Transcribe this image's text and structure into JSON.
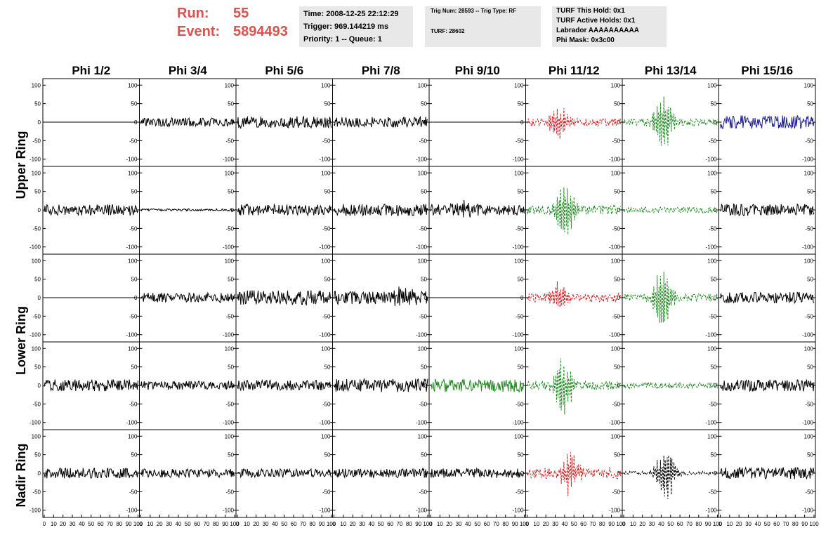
{
  "header": {
    "run_label": "Run:",
    "run_value": "55",
    "event_label": "Event:",
    "event_value": "5894493",
    "time_line": "Time: 2008-12-25 22:12:29",
    "trigger_line": "Trigger: 969.144219 ms",
    "priority_line": "Priority: 1 -- Queue: 1",
    "trig_line": "Trig Num: 28593 -- Trig Type: RF",
    "turf_line": "TURF: 28602",
    "turf_hold": "TURF This Hold: 0x1",
    "turf_active": "TURF Active Holds: 0x1",
    "labrador": "Labrador AAAAAAAAAA",
    "phi_mask": "Phi Mask: 0x3c00"
  },
  "colors": {
    "header_red": "#d9534f",
    "panel_bg": "#e8e8e8",
    "trace_black": "#000000",
    "trace_red": "#cc2222",
    "trace_green": "#228b22",
    "trace_blue": "#1a1a99"
  },
  "chart_data": {
    "type": "line",
    "columns": [
      "Phi 1/2",
      "Phi 3/4",
      "Phi 5/6",
      "Phi 7/8",
      "Phi 9/10",
      "Phi 11/12",
      "Phi 13/14",
      "Phi 15/16"
    ],
    "row_labels": [
      "Upper Ring",
      "Lower Ring",
      "Nadir Ring"
    ],
    "xlim": [
      0,
      100
    ],
    "ylim": [
      -110,
      110
    ],
    "y_ticks": [
      "100",
      "50",
      "0",
      "-50",
      "-100"
    ],
    "x_ticks": [
      "0",
      "10",
      "20",
      "30",
      "40",
      "50",
      "60",
      "70",
      "80",
      "90",
      "100"
    ],
    "panels": [
      [
        {
          "color": "black",
          "style": "solid",
          "amp": 0,
          "burst": 0,
          "center": 45
        },
        {
          "color": "black",
          "style": "solid",
          "amp": 12,
          "burst": 0,
          "center": 45
        },
        {
          "color": "black",
          "style": "solid",
          "amp": 16,
          "burst": 0,
          "center": 45
        },
        {
          "color": "black",
          "style": "solid",
          "amp": 14,
          "burst": 0,
          "center": 45
        },
        {
          "color": "black",
          "style": "solid",
          "amp": 0,
          "burst": 0,
          "center": 45
        },
        {
          "color": "red",
          "style": "dashed",
          "amp": 10,
          "burst": 50,
          "center": 35
        },
        {
          "color": "green",
          "style": "dashed",
          "amp": 10,
          "burst": 85,
          "center": 42
        },
        {
          "color": "blue",
          "style": "solid",
          "amp": 18,
          "burst": 0,
          "center": 45
        }
      ],
      [
        {
          "color": "black",
          "style": "solid",
          "amp": 15,
          "burst": 0,
          "center": 45
        },
        {
          "color": "black",
          "style": "solid",
          "amp": 3,
          "burst": 0,
          "center": 45
        },
        {
          "color": "black",
          "style": "solid",
          "amp": 15,
          "burst": 0,
          "center": 45
        },
        {
          "color": "black",
          "style": "solid",
          "amp": 16,
          "burst": 0,
          "center": 45
        },
        {
          "color": "black",
          "style": "solid",
          "amp": 15,
          "burst": 20,
          "center": 35
        },
        {
          "color": "green",
          "style": "dashed",
          "amp": 12,
          "burst": 90,
          "center": 40
        },
        {
          "color": "green",
          "style": "dashed",
          "amp": 8,
          "burst": 0,
          "center": 45
        },
        {
          "color": "black",
          "style": "solid",
          "amp": 16,
          "burst": 0,
          "center": 45
        }
      ],
      [
        {
          "color": "black",
          "style": "solid",
          "amp": 0,
          "burst": 0,
          "center": 45
        },
        {
          "color": "black",
          "style": "solid",
          "amp": 13,
          "burst": 0,
          "center": 45
        },
        {
          "color": "black",
          "style": "solid",
          "amp": 20,
          "burst": 0,
          "center": 45
        },
        {
          "color": "black",
          "style": "solid",
          "amp": 18,
          "burst": 20,
          "center": 75
        },
        {
          "color": "black",
          "style": "solid",
          "amp": 0,
          "burst": 0,
          "center": 45
        },
        {
          "color": "red",
          "style": "dashed",
          "amp": 12,
          "burst": 40,
          "center": 35
        },
        {
          "color": "green",
          "style": "dashed",
          "amp": 10,
          "burst": 100,
          "center": 42
        },
        {
          "color": "black",
          "style": "solid",
          "amp": 15,
          "burst": 0,
          "center": 45
        }
      ],
      [
        {
          "color": "black",
          "style": "solid",
          "amp": 16,
          "burst": 0,
          "center": 45
        },
        {
          "color": "black",
          "style": "solid",
          "amp": 12,
          "burst": 0,
          "center": 45
        },
        {
          "color": "black",
          "style": "solid",
          "amp": 14,
          "burst": 0,
          "center": 45
        },
        {
          "color": "black",
          "style": "solid",
          "amp": 18,
          "burst": 0,
          "center": 45
        },
        {
          "color": "green",
          "style": "solid",
          "amp": 18,
          "burst": 0,
          "center": 45
        },
        {
          "color": "green",
          "style": "dashed",
          "amp": 12,
          "burst": 85,
          "center": 38
        },
        {
          "color": "green",
          "style": "dashed",
          "amp": 8,
          "burst": 0,
          "center": 45
        },
        {
          "color": "black",
          "style": "solid",
          "amp": 16,
          "burst": 0,
          "center": 45
        }
      ],
      [
        {
          "color": "black",
          "style": "solid",
          "amp": 14,
          "burst": 0,
          "center": 45
        },
        {
          "color": "black",
          "style": "solid",
          "amp": 12,
          "burst": 0,
          "center": 45
        },
        {
          "color": "black",
          "style": "solid",
          "amp": 12,
          "burst": 0,
          "center": 45
        },
        {
          "color": "black",
          "style": "solid",
          "amp": 12,
          "burst": 0,
          "center": 45
        },
        {
          "color": "black",
          "style": "solid",
          "amp": 13,
          "burst": 0,
          "center": 45
        },
        {
          "color": "red",
          "style": "dashed",
          "amp": 15,
          "burst": 60,
          "center": 45
        },
        {
          "color": "black",
          "style": "dashed",
          "amp": 5,
          "burst": 80,
          "center": 45
        },
        {
          "color": "black",
          "style": "solid",
          "amp": 16,
          "burst": 0,
          "center": 45
        }
      ]
    ]
  }
}
